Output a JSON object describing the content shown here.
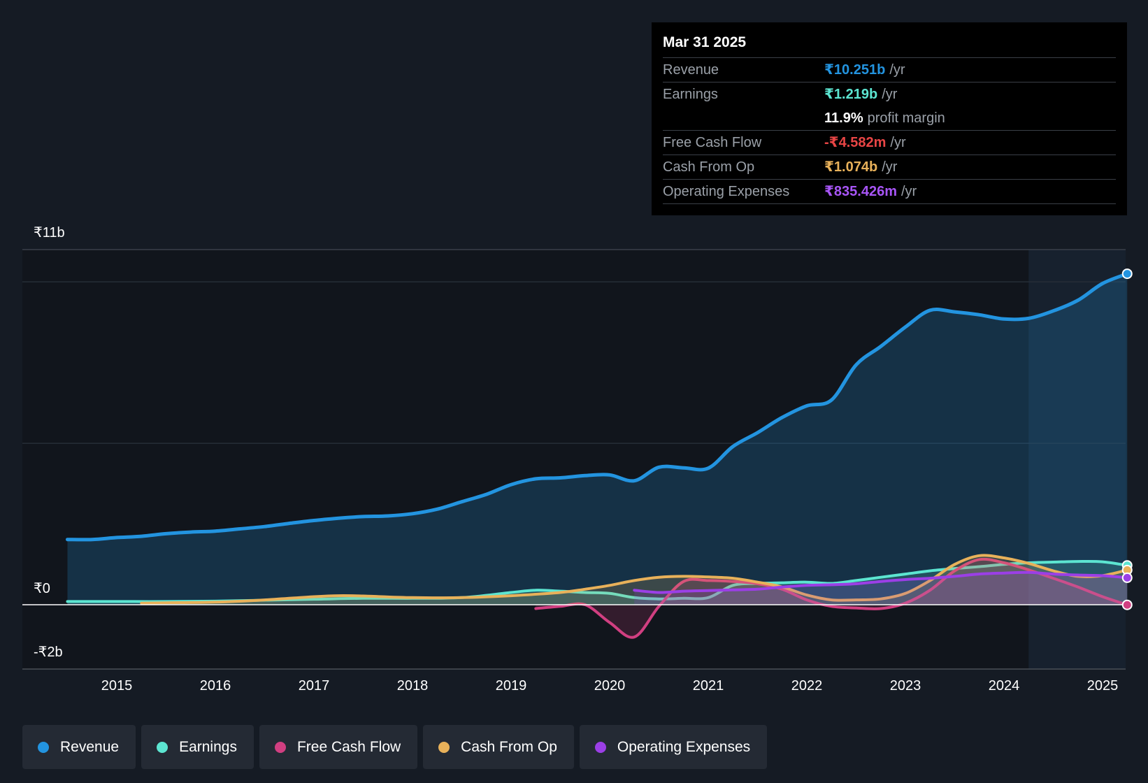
{
  "chart_data": {
    "type": "line",
    "y_axis": {
      "top_label": "₹11b",
      "zero_label": "₹0",
      "bottom_label": "-₹2b",
      "ylim": [
        -2,
        11
      ],
      "unit": "₹ billions"
    },
    "x_axis": {
      "tick_labels": [
        "2015",
        "2016",
        "2017",
        "2018",
        "2019",
        "2020",
        "2021",
        "2022",
        "2023",
        "2024",
        "2025"
      ],
      "xlim": [
        2014.05,
        2025.25
      ]
    },
    "grid": true,
    "forecast_shading_start": 2024.25,
    "series": [
      {
        "name": "Revenue",
        "color": "#2394e0",
        "fill": true,
        "points": [
          [
            2014.5,
            2.02
          ],
          [
            2014.75,
            2.02
          ],
          [
            2015.0,
            2.08
          ],
          [
            2015.25,
            2.12
          ],
          [
            2015.5,
            2.2
          ],
          [
            2015.75,
            2.25
          ],
          [
            2016.0,
            2.28
          ],
          [
            2016.25,
            2.35
          ],
          [
            2016.5,
            2.42
          ],
          [
            2016.75,
            2.52
          ],
          [
            2017.0,
            2.61
          ],
          [
            2017.25,
            2.68
          ],
          [
            2017.5,
            2.73
          ],
          [
            2017.75,
            2.75
          ],
          [
            2018.0,
            2.82
          ],
          [
            2018.25,
            2.96
          ],
          [
            2018.5,
            3.19
          ],
          [
            2018.75,
            3.42
          ],
          [
            2019.0,
            3.72
          ],
          [
            2019.25,
            3.9
          ],
          [
            2019.5,
            3.93
          ],
          [
            2019.75,
            4.0
          ],
          [
            2020.0,
            4.02
          ],
          [
            2020.25,
            3.84
          ],
          [
            2020.5,
            4.26
          ],
          [
            2020.75,
            4.24
          ],
          [
            2021.0,
            4.23
          ],
          [
            2021.25,
            4.9
          ],
          [
            2021.5,
            5.33
          ],
          [
            2021.75,
            5.8
          ],
          [
            2022.0,
            6.16
          ],
          [
            2022.25,
            6.34
          ],
          [
            2022.5,
            7.43
          ],
          [
            2022.75,
            8.0
          ],
          [
            2023.0,
            8.6
          ],
          [
            2023.25,
            9.12
          ],
          [
            2023.5,
            9.07
          ],
          [
            2023.75,
            8.98
          ],
          [
            2024.0,
            8.85
          ],
          [
            2024.25,
            8.87
          ],
          [
            2024.5,
            9.1
          ],
          [
            2024.75,
            9.43
          ],
          [
            2025.0,
            9.95
          ],
          [
            2025.25,
            10.251
          ]
        ]
      },
      {
        "name": "Earnings",
        "color": "#5ce5d1",
        "fill": true,
        "points": [
          [
            2014.5,
            0.1
          ],
          [
            2015.0,
            0.1
          ],
          [
            2015.5,
            0.1
          ],
          [
            2016.0,
            0.11
          ],
          [
            2016.5,
            0.14
          ],
          [
            2017.0,
            0.17
          ],
          [
            2017.5,
            0.2
          ],
          [
            2018.0,
            0.2
          ],
          [
            2018.5,
            0.22
          ],
          [
            2019.0,
            0.38
          ],
          [
            2019.25,
            0.45
          ],
          [
            2019.5,
            0.42
          ],
          [
            2019.75,
            0.38
          ],
          [
            2020.0,
            0.35
          ],
          [
            2020.25,
            0.22
          ],
          [
            2020.5,
            0.18
          ],
          [
            2020.75,
            0.2
          ],
          [
            2021.0,
            0.22
          ],
          [
            2021.25,
            0.6
          ],
          [
            2021.5,
            0.66
          ],
          [
            2021.75,
            0.68
          ],
          [
            2022.0,
            0.7
          ],
          [
            2022.25,
            0.66
          ],
          [
            2022.5,
            0.75
          ],
          [
            2022.75,
            0.85
          ],
          [
            2023.0,
            0.95
          ],
          [
            2023.25,
            1.05
          ],
          [
            2023.5,
            1.12
          ],
          [
            2023.75,
            1.18
          ],
          [
            2024.0,
            1.25
          ],
          [
            2024.25,
            1.3
          ],
          [
            2024.5,
            1.32
          ],
          [
            2024.75,
            1.34
          ],
          [
            2025.0,
            1.33
          ],
          [
            2025.25,
            1.219
          ]
        ]
      },
      {
        "name": "Free Cash Flow",
        "color": "#d13f81",
        "fill": true,
        "points": [
          [
            2019.25,
            -0.12
          ],
          [
            2019.5,
            -0.05
          ],
          [
            2019.75,
            0.0
          ],
          [
            2020.0,
            -0.55
          ],
          [
            2020.25,
            -1.0
          ],
          [
            2020.5,
            -0.05
          ],
          [
            2020.75,
            0.72
          ],
          [
            2021.0,
            0.75
          ],
          [
            2021.25,
            0.72
          ],
          [
            2021.5,
            0.65
          ],
          [
            2021.75,
            0.48
          ],
          [
            2022.0,
            0.15
          ],
          [
            2022.25,
            -0.05
          ],
          [
            2022.5,
            -0.1
          ],
          [
            2022.75,
            -0.12
          ],
          [
            2023.0,
            0.05
          ],
          [
            2023.25,
            0.45
          ],
          [
            2023.5,
            1.05
          ],
          [
            2023.75,
            1.4
          ],
          [
            2024.0,
            1.3
          ],
          [
            2024.25,
            1.08
          ],
          [
            2024.5,
            0.82
          ],
          [
            2024.75,
            0.55
          ],
          [
            2025.0,
            0.25
          ],
          [
            2025.25,
            -0.004582
          ]
        ]
      },
      {
        "name": "Cash From Op",
        "color": "#e8b15a",
        "fill": true,
        "points": [
          [
            2015.25,
            0.05
          ],
          [
            2015.5,
            0.06
          ],
          [
            2016.0,
            0.08
          ],
          [
            2016.5,
            0.15
          ],
          [
            2017.0,
            0.25
          ],
          [
            2017.25,
            0.28
          ],
          [
            2017.5,
            0.27
          ],
          [
            2018.0,
            0.22
          ],
          [
            2018.5,
            0.22
          ],
          [
            2019.0,
            0.28
          ],
          [
            2019.5,
            0.38
          ],
          [
            2019.75,
            0.48
          ],
          [
            2020.0,
            0.6
          ],
          [
            2020.25,
            0.75
          ],
          [
            2020.5,
            0.85
          ],
          [
            2020.75,
            0.88
          ],
          [
            2021.0,
            0.86
          ],
          [
            2021.25,
            0.82
          ],
          [
            2021.5,
            0.7
          ],
          [
            2021.75,
            0.55
          ],
          [
            2022.0,
            0.3
          ],
          [
            2022.25,
            0.15
          ],
          [
            2022.5,
            0.15
          ],
          [
            2022.75,
            0.18
          ],
          [
            2023.0,
            0.35
          ],
          [
            2023.25,
            0.75
          ],
          [
            2023.5,
            1.25
          ],
          [
            2023.75,
            1.52
          ],
          [
            2024.0,
            1.45
          ],
          [
            2024.25,
            1.28
          ],
          [
            2024.5,
            1.05
          ],
          [
            2024.75,
            0.88
          ],
          [
            2025.0,
            0.9
          ],
          [
            2025.25,
            1.074
          ]
        ]
      },
      {
        "name": "Operating Expenses",
        "color": "#9b3fe6",
        "fill": true,
        "points": [
          [
            2020.25,
            0.45
          ],
          [
            2020.5,
            0.38
          ],
          [
            2020.75,
            0.42
          ],
          [
            2021.0,
            0.44
          ],
          [
            2021.25,
            0.46
          ],
          [
            2021.5,
            0.48
          ],
          [
            2021.75,
            0.55
          ],
          [
            2022.0,
            0.6
          ],
          [
            2022.25,
            0.62
          ],
          [
            2022.5,
            0.65
          ],
          [
            2022.75,
            0.72
          ],
          [
            2023.0,
            0.78
          ],
          [
            2023.25,
            0.82
          ],
          [
            2023.5,
            0.88
          ],
          [
            2023.75,
            0.95
          ],
          [
            2024.0,
            0.98
          ],
          [
            2024.25,
            1.0
          ],
          [
            2024.5,
            0.95
          ],
          [
            2024.75,
            0.92
          ],
          [
            2025.0,
            0.9
          ],
          [
            2025.25,
            0.835426
          ]
        ]
      }
    ]
  },
  "tooltip": {
    "date": "Mar 31 2025",
    "revenue": {
      "label": "Revenue",
      "value": "₹10.251b",
      "unit": "/yr"
    },
    "earnings": {
      "label": "Earnings",
      "value": "₹1.219b",
      "unit": "/yr"
    },
    "margin": {
      "value": "11.9%",
      "label": "profit margin"
    },
    "fcf": {
      "label": "Free Cash Flow",
      "value": "-₹4.582m",
      "unit": "/yr"
    },
    "cfo": {
      "label": "Cash From Op",
      "value": "₹1.074b",
      "unit": "/yr"
    },
    "opex": {
      "label": "Operating Expenses",
      "value": "₹835.426m",
      "unit": "/yr"
    }
  },
  "legend": [
    {
      "label": "Revenue",
      "color": "#2394e0"
    },
    {
      "label": "Earnings",
      "color": "#5ce5d1"
    },
    {
      "label": "Free Cash Flow",
      "color": "#d13f81"
    },
    {
      "label": "Cash From Op",
      "color": "#e8b15a"
    },
    {
      "label": "Operating Expenses",
      "color": "#9b3fe6"
    }
  ]
}
